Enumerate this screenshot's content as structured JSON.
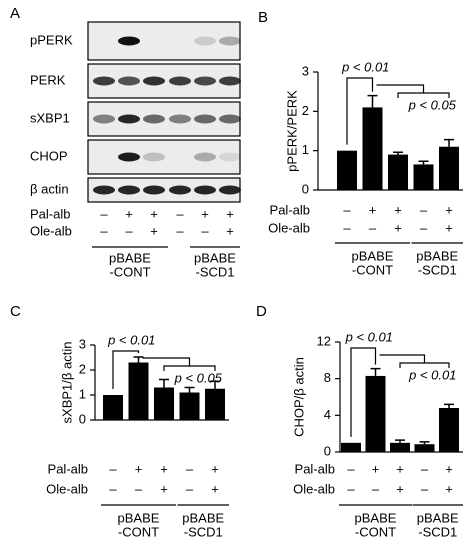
{
  "blot": {
    "label": "A",
    "rows": [
      "pPERK",
      "PERK",
      "sXBP1",
      "CHOP",
      "β actin"
    ],
    "conditions": [
      {
        "name": "Pal-alb",
        "signs": [
          "–",
          "+",
          "+",
          "–",
          "+",
          "+"
        ]
      },
      {
        "name": "Ole-alb",
        "signs": [
          "–",
          "–",
          "+",
          "–",
          "–",
          "+"
        ]
      }
    ],
    "groups": [
      [
        "pBABE",
        "-CONT"
      ],
      [
        "pBABE",
        "-SCD1"
      ]
    ]
  },
  "chart_data": [
    {
      "type": "bar",
      "label": "B",
      "y_label": "pPERK/PERK",
      "color": "#000000",
      "values": [
        1.0,
        2.1,
        0.9,
        0.65,
        1.1
      ],
      "errors": [
        null,
        0.3,
        0.06,
        0.08,
        0.18
      ],
      "ylim": [
        0,
        3
      ],
      "yticks": [
        0,
        1,
        2,
        3
      ],
      "annotations": [
        "p < 0.01",
        "p < 0.05"
      ],
      "conditions": [
        {
          "name": "Pal-alb",
          "signs": [
            "–",
            "+",
            "+",
            "–",
            "+"
          ]
        },
        {
          "name": "Ole-alb",
          "signs": [
            "–",
            "–",
            "+",
            "–",
            "+"
          ]
        }
      ],
      "groups": [
        [
          "pBABE",
          "-CONT"
        ],
        [
          "pBABE",
          "-SCD1"
        ]
      ]
    },
    {
      "type": "bar",
      "label": "C",
      "y_label": "sXBP1/β actin",
      "color": "#000000",
      "values": [
        1.0,
        2.3,
        1.3,
        1.1,
        1.25
      ],
      "errors": [
        null,
        0.22,
        0.32,
        0.2,
        0.3
      ],
      "ylim": [
        0,
        3
      ],
      "yticks": [
        0,
        1,
        2,
        3
      ],
      "annotations": [
        "p < 0.01",
        "p < 0.05"
      ],
      "conditions": [
        {
          "name": "Pal-alb",
          "signs": [
            "–",
            "+",
            "+",
            "–",
            "+"
          ]
        },
        {
          "name": "Ole-alb",
          "signs": [
            "–",
            "–",
            "+",
            "–",
            "+"
          ]
        }
      ],
      "groups": [
        [
          "pBABE",
          "-CONT"
        ],
        [
          "pBABE",
          "-SCD1"
        ]
      ]
    },
    {
      "type": "bar",
      "label": "D",
      "y_label": "CHOP/β actin",
      "color": "#000000",
      "values": [
        1.0,
        8.3,
        1.0,
        0.85,
        4.8
      ],
      "errors": [
        null,
        0.8,
        0.3,
        0.25,
        0.4
      ],
      "ylim": [
        0,
        12
      ],
      "yticks": [
        0,
        4,
        8,
        12
      ],
      "annotations": [
        "p < 0.01",
        "p < 0.01"
      ],
      "conditions": [
        {
          "name": "Pal-alb",
          "signs": [
            "–",
            "+",
            "+",
            "–",
            "+"
          ]
        },
        {
          "name": "Ole-alb",
          "signs": [
            "–",
            "–",
            "+",
            "–",
            "+"
          ]
        }
      ],
      "groups": [
        [
          "pBABE",
          "-CONT"
        ],
        [
          "pBABE",
          "-SCD1"
        ]
      ]
    }
  ]
}
